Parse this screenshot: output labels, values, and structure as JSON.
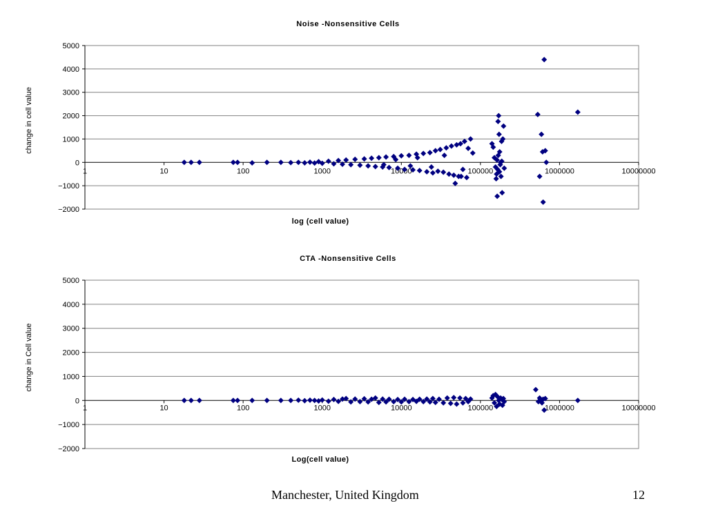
{
  "footer": {
    "location": "Manchester, United Kingdom",
    "page": "12"
  },
  "colors": {
    "marker": "#000080",
    "grid": "#808080",
    "axis": "#000000"
  },
  "chart_data": [
    {
      "type": "scatter",
      "title": "Noise -Nonsensitive Cells",
      "xlabel": "log (cell value)",
      "ylabel": "change in cell value",
      "xscale": "log",
      "xticks": [
        "1",
        "10",
        "100",
        "1000",
        "10000",
        "100000",
        "1000000",
        "10000000"
      ],
      "yticks": [
        "5000",
        "4000",
        "3000",
        "2000",
        "1000",
        "0",
        "-1000",
        "-2000"
      ],
      "xlim": [
        1,
        10000000
      ],
      "ylim": [
        -2000,
        5000
      ],
      "grid": "horizontal",
      "marker": "diamond",
      "points": [
        [
          18,
          0
        ],
        [
          22,
          0
        ],
        [
          28,
          0
        ],
        [
          75,
          0
        ],
        [
          85,
          0
        ],
        [
          130,
          -20
        ],
        [
          200,
          0
        ],
        [
          300,
          0
        ],
        [
          400,
          -10
        ],
        [
          500,
          0
        ],
        [
          600,
          -20
        ],
        [
          700,
          10
        ],
        [
          800,
          -30
        ],
        [
          900,
          30
        ],
        [
          1000,
          -40
        ],
        [
          1200,
          50
        ],
        [
          1400,
          -60
        ],
        [
          1600,
          80
        ],
        [
          1800,
          -80
        ],
        [
          2000,
          100
        ],
        [
          2300,
          -100
        ],
        [
          2600,
          130
        ],
        [
          3000,
          -120
        ],
        [
          3400,
          150
        ],
        [
          3800,
          -150
        ],
        [
          4200,
          180
        ],
        [
          4700,
          -180
        ],
        [
          5200,
          200
        ],
        [
          5800,
          -200
        ],
        [
          6400,
          230
        ],
        [
          7000,
          -220
        ],
        [
          8000,
          250
        ],
        [
          9000,
          -250
        ],
        [
          10000,
          280
        ],
        [
          11000,
          -300
        ],
        [
          12500,
          300
        ],
        [
          14000,
          -320
        ],
        [
          15500,
          350
        ],
        [
          17000,
          -350
        ],
        [
          19000,
          380
        ],
        [
          21000,
          -400
        ],
        [
          23000,
          420
        ],
        [
          25000,
          -450
        ],
        [
          27000,
          500
        ],
        [
          29000,
          -380
        ],
        [
          31000,
          550
        ],
        [
          34000,
          -420
        ],
        [
          37000,
          620
        ],
        [
          40000,
          -500
        ],
        [
          43000,
          700
        ],
        [
          46000,
          -550
        ],
        [
          50000,
          750
        ],
        [
          53000,
          -600
        ],
        [
          56000,
          800
        ],
        [
          60000,
          -300
        ],
        [
          63000,
          900
        ],
        [
          67000,
          -650
        ],
        [
          70000,
          600
        ],
        [
          75000,
          1000
        ],
        [
          80000,
          400
        ],
        [
          48000,
          -900
        ],
        [
          57000,
          -600
        ],
        [
          35000,
          300
        ],
        [
          24000,
          -200
        ],
        [
          16000,
          200
        ],
        [
          13000,
          -150
        ],
        [
          8500,
          120
        ],
        [
          6000,
          -100
        ],
        [
          140000,
          800
        ],
        [
          145000,
          650
        ],
        [
          150000,
          200
        ],
        [
          155000,
          -200
        ],
        [
          158000,
          -700
        ],
        [
          160000,
          -500
        ],
        [
          162000,
          100
        ],
        [
          165000,
          -300
        ],
        [
          167000,
          1750
        ],
        [
          170000,
          2000
        ],
        [
          172000,
          1200
        ],
        [
          175000,
          450
        ],
        [
          178000,
          -100
        ],
        [
          180000,
          0
        ],
        [
          182000,
          -600
        ],
        [
          185000,
          900
        ],
        [
          188000,
          -1300
        ],
        [
          192000,
          1000
        ],
        [
          196000,
          1550
        ],
        [
          200000,
          -250
        ],
        [
          163000,
          -1450
        ],
        [
          168000,
          300
        ],
        [
          174000,
          -400
        ],
        [
          186000,
          50
        ],
        [
          530000,
          2050
        ],
        [
          560000,
          -600
        ],
        [
          590000,
          1200
        ],
        [
          610000,
          450
        ],
        [
          620000,
          -1700
        ],
        [
          640000,
          4400
        ],
        [
          660000,
          500
        ],
        [
          680000,
          0
        ],
        [
          1700000,
          2150
        ]
      ]
    },
    {
      "type": "scatter",
      "title": "CTA -Nonsensitive Cells",
      "xlabel": "Log(cell value)",
      "ylabel": "change in Cell value",
      "xscale": "log",
      "xticks": [
        "1",
        "10",
        "100",
        "1000",
        "10000",
        "100000",
        "1000000",
        "10000000"
      ],
      "yticks": [
        "5000",
        "4000",
        "3000",
        "2000",
        "1000",
        "0",
        "-1000",
        "-2000"
      ],
      "xlim": [
        1,
        10000000
      ],
      "ylim": [
        -2000,
        5000
      ],
      "grid": "horizontal",
      "marker": "diamond",
      "points": [
        [
          18,
          0
        ],
        [
          22,
          0
        ],
        [
          28,
          0
        ],
        [
          75,
          0
        ],
        [
          85,
          0
        ],
        [
          130,
          0
        ],
        [
          200,
          0
        ],
        [
          300,
          0
        ],
        [
          400,
          0
        ],
        [
          500,
          10
        ],
        [
          600,
          -10
        ],
        [
          700,
          10
        ],
        [
          800,
          0
        ],
        [
          900,
          -20
        ],
        [
          1000,
          20
        ],
        [
          1200,
          -30
        ],
        [
          1400,
          40
        ],
        [
          1600,
          -40
        ],
        [
          1800,
          60
        ],
        [
          2000,
          80
        ],
        [
          2300,
          -60
        ],
        [
          2600,
          60
        ],
        [
          3000,
          -50
        ],
        [
          3400,
          70
        ],
        [
          3800,
          -60
        ],
        [
          4200,
          50
        ],
        [
          4700,
          100
        ],
        [
          5200,
          -80
        ],
        [
          5800,
          60
        ],
        [
          6400,
          -60
        ],
        [
          7000,
          50
        ],
        [
          8000,
          -50
        ],
        [
          9000,
          40
        ],
        [
          10000,
          -60
        ],
        [
          11000,
          50
        ],
        [
          12500,
          -50
        ],
        [
          14000,
          40
        ],
        [
          15500,
          -40
        ],
        [
          17000,
          50
        ],
        [
          19000,
          -50
        ],
        [
          21000,
          60
        ],
        [
          23000,
          -60
        ],
        [
          25000,
          80
        ],
        [
          27000,
          -80
        ],
        [
          30000,
          50
        ],
        [
          34000,
          -100
        ],
        [
          38000,
          100
        ],
        [
          42000,
          -120
        ],
        [
          46000,
          120
        ],
        [
          50000,
          -150
        ],
        [
          55000,
          100
        ],
        [
          60000,
          -100
        ],
        [
          65000,
          80
        ],
        [
          70000,
          -50
        ],
        [
          75000,
          60
        ],
        [
          140000,
          100
        ],
        [
          145000,
          200
        ],
        [
          150000,
          -100
        ],
        [
          155000,
          250
        ],
        [
          160000,
          -250
        ],
        [
          165000,
          150
        ],
        [
          170000,
          0
        ],
        [
          175000,
          -150
        ],
        [
          180000,
          100
        ],
        [
          185000,
          50
        ],
        [
          190000,
          -200
        ],
        [
          195000,
          80
        ],
        [
          200000,
          -50
        ],
        [
          500000,
          450
        ],
        [
          540000,
          -50
        ],
        [
          560000,
          100
        ],
        [
          580000,
          0
        ],
        [
          600000,
          -100
        ],
        [
          620000,
          50
        ],
        [
          640000,
          -400
        ],
        [
          660000,
          80
        ],
        [
          1700000,
          0
        ]
      ]
    }
  ]
}
